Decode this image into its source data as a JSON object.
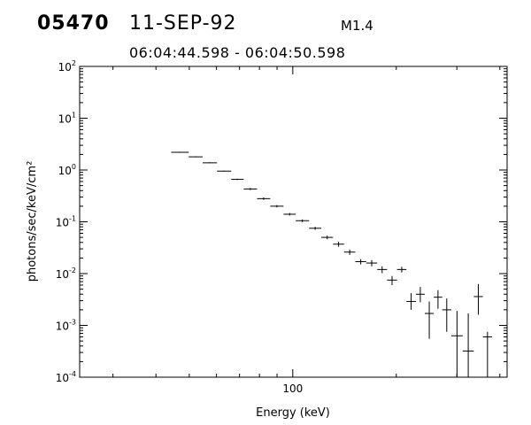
{
  "header": {
    "event_id": "05470",
    "date": "11-SEP-92",
    "flare_class": "M1.4",
    "time_range": "06:04:44.598 - 06:04:50.598"
  },
  "chart_data": {
    "type": "scatter",
    "xlabel": "Energy (keV)",
    "ylabel": "photons/sec/keV/cm²",
    "x_scale": "log",
    "y_scale": "log",
    "xlim": [
      24,
      420
    ],
    "ylim": [
      0.0001,
      100
    ],
    "x_tick_labels": [
      {
        "value": 100,
        "label": "100"
      }
    ],
    "y_tick_labels": [
      {
        "value": 0.0001,
        "base": "10",
        "exp": "-4"
      },
      {
        "value": 0.001,
        "base": "10",
        "exp": "-3"
      },
      {
        "value": 0.01,
        "base": "10",
        "exp": "-2"
      },
      {
        "value": 0.1,
        "base": "10",
        "exp": "-1"
      },
      {
        "value": 1,
        "base": "10",
        "exp": "0"
      },
      {
        "value": 10,
        "base": "10",
        "exp": "1"
      },
      {
        "value": 100,
        "base": "10",
        "exp": "2"
      }
    ],
    "points": [
      {
        "x_lo": 44.3,
        "x_hi": 49.8,
        "y": 2.2,
        "y_lo": 2.15,
        "y_hi": 2.25
      },
      {
        "x_lo": 49.8,
        "x_hi": 54.7,
        "y": 1.8,
        "y_lo": 1.76,
        "y_hi": 1.84
      },
      {
        "x_lo": 54.7,
        "x_hi": 60.2,
        "y": 1.38,
        "y_lo": 1.35,
        "y_hi": 1.41
      },
      {
        "x_lo": 60.2,
        "x_hi": 66.2,
        "y": 0.95,
        "y_lo": 0.93,
        "y_hi": 0.97
      },
      {
        "x_lo": 66.2,
        "x_hi": 72.0,
        "y": 0.66,
        "y_lo": 0.64,
        "y_hi": 0.68
      },
      {
        "x_lo": 72.0,
        "x_hi": 78.7,
        "y": 0.43,
        "y_lo": 0.41,
        "y_hi": 0.45
      },
      {
        "x_lo": 78.7,
        "x_hi": 86.0,
        "y": 0.28,
        "y_lo": 0.265,
        "y_hi": 0.295
      },
      {
        "x_lo": 86.0,
        "x_hi": 94.0,
        "y": 0.2,
        "y_lo": 0.19,
        "y_hi": 0.21
      },
      {
        "x_lo": 94.0,
        "x_hi": 102.0,
        "y": 0.14,
        "y_lo": 0.132,
        "y_hi": 0.148
      },
      {
        "x_lo": 102.0,
        "x_hi": 111.5,
        "y": 0.105,
        "y_lo": 0.099,
        "y_hi": 0.111
      },
      {
        "x_lo": 111.5,
        "x_hi": 121.0,
        "y": 0.075,
        "y_lo": 0.07,
        "y_hi": 0.08
      },
      {
        "x_lo": 121.0,
        "x_hi": 131.0,
        "y": 0.05,
        "y_lo": 0.046,
        "y_hi": 0.054
      },
      {
        "x_lo": 131.0,
        "x_hi": 141.0,
        "y": 0.037,
        "y_lo": 0.033,
        "y_hi": 0.041
      },
      {
        "x_lo": 141.0,
        "x_hi": 152.0,
        "y": 0.026,
        "y_lo": 0.023,
        "y_hi": 0.029
      },
      {
        "x_lo": 152.0,
        "x_hi": 163.5,
        "y": 0.017,
        "y_lo": 0.015,
        "y_hi": 0.019
      },
      {
        "x_lo": 163.5,
        "x_hi": 176.0,
        "y": 0.016,
        "y_lo": 0.0138,
        "y_hi": 0.0182
      },
      {
        "x_lo": 176.0,
        "x_hi": 188.0,
        "y": 0.012,
        "y_lo": 0.0102,
        "y_hi": 0.0138
      },
      {
        "x_lo": 188.0,
        "x_hi": 201.0,
        "y": 0.0075,
        "y_lo": 0.006,
        "y_hi": 0.009
      },
      {
        "x_lo": 201.0,
        "x_hi": 214.0,
        "y": 0.012,
        "y_lo": 0.0105,
        "y_hi": 0.0135
      },
      {
        "x_lo": 214.0,
        "x_hi": 228.0,
        "y": 0.0029,
        "y_lo": 0.002,
        "y_hi": 0.0042
      },
      {
        "x_lo": 228.0,
        "x_hi": 242.0,
        "y": 0.004,
        "y_lo": 0.0028,
        "y_hi": 0.0055
      },
      {
        "x_lo": 242.0,
        "x_hi": 257.0,
        "y": 0.0017,
        "y_lo": 0.00055,
        "y_hi": 0.0029
      },
      {
        "x_lo": 257.0,
        "x_hi": 272.0,
        "y": 0.0035,
        "y_lo": 0.0021,
        "y_hi": 0.0048
      },
      {
        "x_lo": 272.0,
        "x_hi": 289.0,
        "y": 0.002,
        "y_lo": 0.00075,
        "y_hi": 0.0033
      },
      {
        "x_lo": 289.0,
        "x_hi": 312.0,
        "y": 0.00063,
        "y_lo": 0.0001,
        "y_hi": 0.0019
      },
      {
        "x_lo": 312.0,
        "x_hi": 336.0,
        "y": 0.00032,
        "y_lo": 0.0001,
        "y_hi": 0.0017
      },
      {
        "x_lo": 336.0,
        "x_hi": 357.0,
        "y": 0.0036,
        "y_lo": 0.0016,
        "y_hi": 0.0063
      },
      {
        "x_lo": 357.0,
        "x_hi": 380.0,
        "y": 0.0006,
        "y_lo": 0.0001,
        "y_hi": 0.00075
      }
    ]
  }
}
